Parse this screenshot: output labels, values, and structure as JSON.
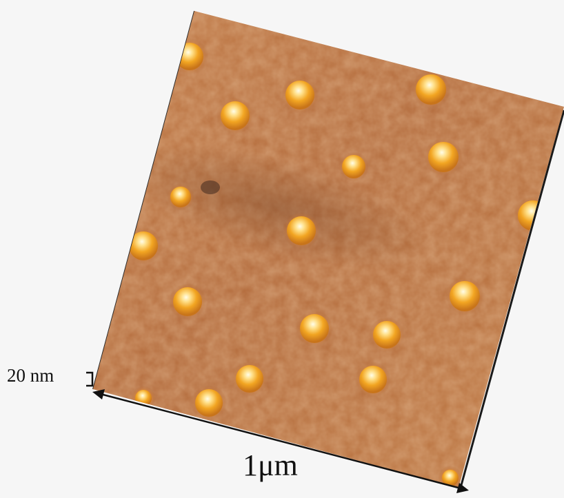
{
  "image": {
    "kind": "AFM 3D topography",
    "surface_color": "#b8703f",
    "dot_color": "#f2a522",
    "scale_z_label": "20 nm",
    "scale_x_label": "1μm"
  }
}
